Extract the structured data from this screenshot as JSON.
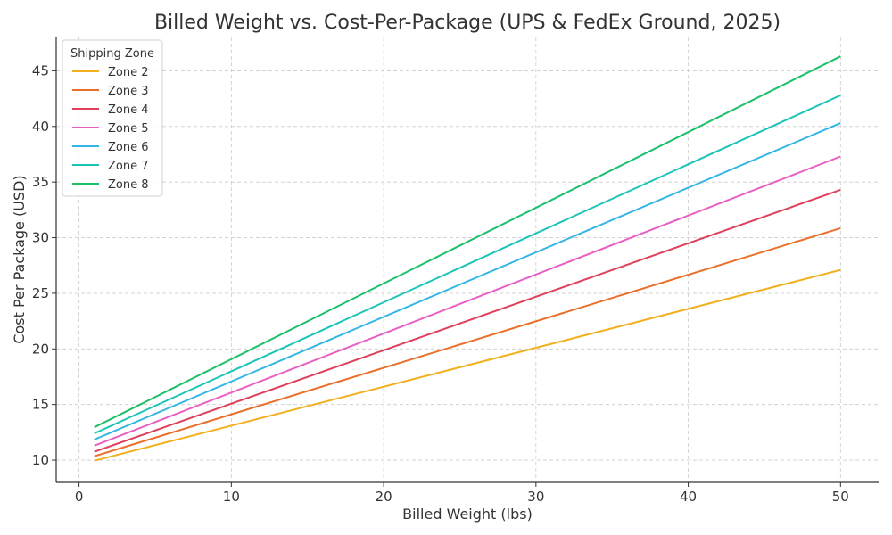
{
  "chart_data": {
    "type": "line",
    "title": "Billed Weight vs. Cost-Per-Package (UPS & FedEx Ground, 2025)",
    "xlabel": "Billed Weight (lbs)",
    "ylabel": "Cost Per Package (USD)",
    "xlim": [
      -1.5,
      52.5
    ],
    "ylim": [
      8.0,
      48.0
    ],
    "xticks": [
      0,
      10,
      20,
      30,
      40,
      50
    ],
    "yticks": [
      10,
      15,
      20,
      25,
      30,
      35,
      40,
      45
    ],
    "grid": true,
    "legend": {
      "title": "Shipping Zone",
      "placement": "top-left"
    },
    "series": [
      {
        "name": "Zone 2",
        "color": "#f2b01e",
        "x": [
          1,
          50
        ],
        "y": [
          9.95,
          27.1
        ]
      },
      {
        "name": "Zone 3",
        "color": "#ea6f2a",
        "x": [
          1,
          50
        ],
        "y": [
          10.35,
          30.85
        ]
      },
      {
        "name": "Zone 4",
        "color": "#e0405a",
        "x": [
          1,
          50
        ],
        "y": [
          10.75,
          34.3
        ]
      },
      {
        "name": "Zone 5",
        "color": "#ea5fc4",
        "x": [
          1,
          50
        ],
        "y": [
          11.3,
          37.3
        ]
      },
      {
        "name": "Zone 6",
        "color": "#33b5e5",
        "x": [
          1,
          50
        ],
        "y": [
          11.85,
          40.3
        ]
      },
      {
        "name": "Zone 7",
        "color": "#1cc4b8",
        "x": [
          1,
          50
        ],
        "y": [
          12.4,
          42.8
        ]
      },
      {
        "name": "Zone 8",
        "color": "#1dbf68",
        "x": [
          1,
          50
        ],
        "y": [
          12.95,
          46.3
        ]
      }
    ]
  }
}
